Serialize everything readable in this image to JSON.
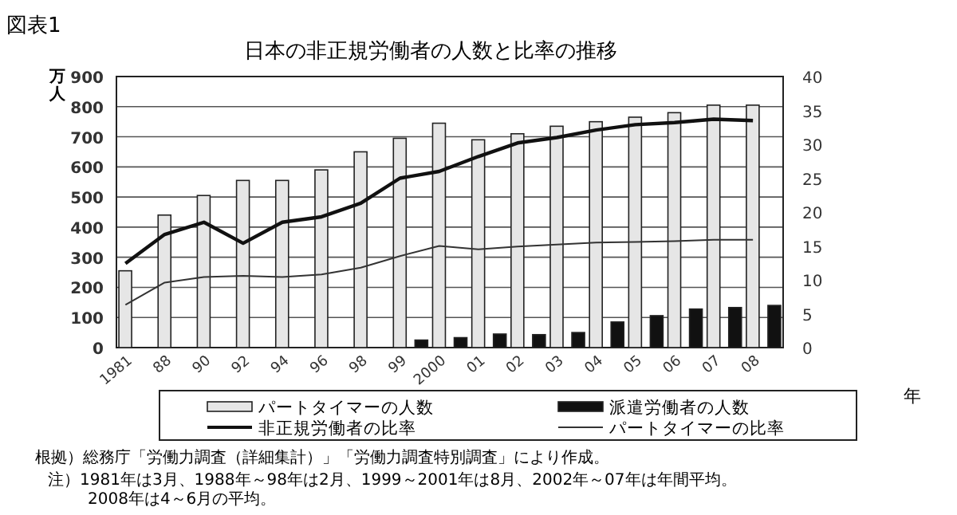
{
  "chart_data": {
    "type": "bar",
    "title": "日本の非正規労働者の人数と比率の推移",
    "annotations": [
      "図表1",
      "根拠）総務庁「労働力調査（詳細集計）」「労働力調査特別調査」により作成。",
      "注）1981年は3月、1988年～98年は2月、1999～2001年は8月、2002年～07年は年間平均。",
      "2008年は4～6月の平均。"
    ],
    "ylabel": "万人",
    "xlabel": "年",
    "categories": [
      "1981",
      "88",
      "90",
      "92",
      "94",
      "96",
      "98",
      "99",
      "2000",
      "01",
      "02",
      "03",
      "04",
      "05",
      "06",
      "07",
      "08"
    ],
    "series": [
      {
        "name": "パートタイマーの人数",
        "color": "#e6e6e6",
        "values": [
          255,
          440,
          505,
          555,
          555,
          590,
          650,
          695,
          745,
          690,
          710,
          735,
          750,
          765,
          780,
          805,
          805
        ]
      },
      {
        "name": "派遣労働者の人数",
        "color": "#111111",
        "values": [
          null,
          null,
          null,
          null,
          null,
          null,
          null,
          25,
          33,
          45,
          43,
          50,
          85,
          106,
          128,
          133,
          140
        ]
      },
      {
        "name": "非正規労働者の比率",
        "type": "line",
        "axis": "y2",
        "color": "#111111",
        "values": [
          12.4,
          16.7,
          18.5,
          15.4,
          18.5,
          19.3,
          21.3,
          25.0,
          26.0,
          28.2,
          30.2,
          31.0,
          32.1,
          32.9,
          33.2,
          33.7,
          33.5
        ]
      },
      {
        "name": "パートタイマーの比率",
        "type": "line",
        "axis": "y2",
        "color": "#333333",
        "values": [
          6.3,
          9.6,
          10.4,
          10.6,
          10.4,
          10.8,
          11.8,
          13.5,
          15.0,
          14.5,
          14.9,
          15.2,
          15.5,
          15.6,
          15.7,
          15.9,
          15.9
        ]
      }
    ],
    "ylim": [
      0,
      900
    ],
    "yticks": [
      0,
      100,
      200,
      300,
      400,
      500,
      600,
      700,
      800,
      900
    ],
    "y2lim": [
      0,
      40
    ],
    "y2ticks": [
      0,
      5,
      10,
      15,
      20,
      25,
      30,
      35,
      40
    ],
    "grid": "y",
    "legend": "bottom"
  }
}
